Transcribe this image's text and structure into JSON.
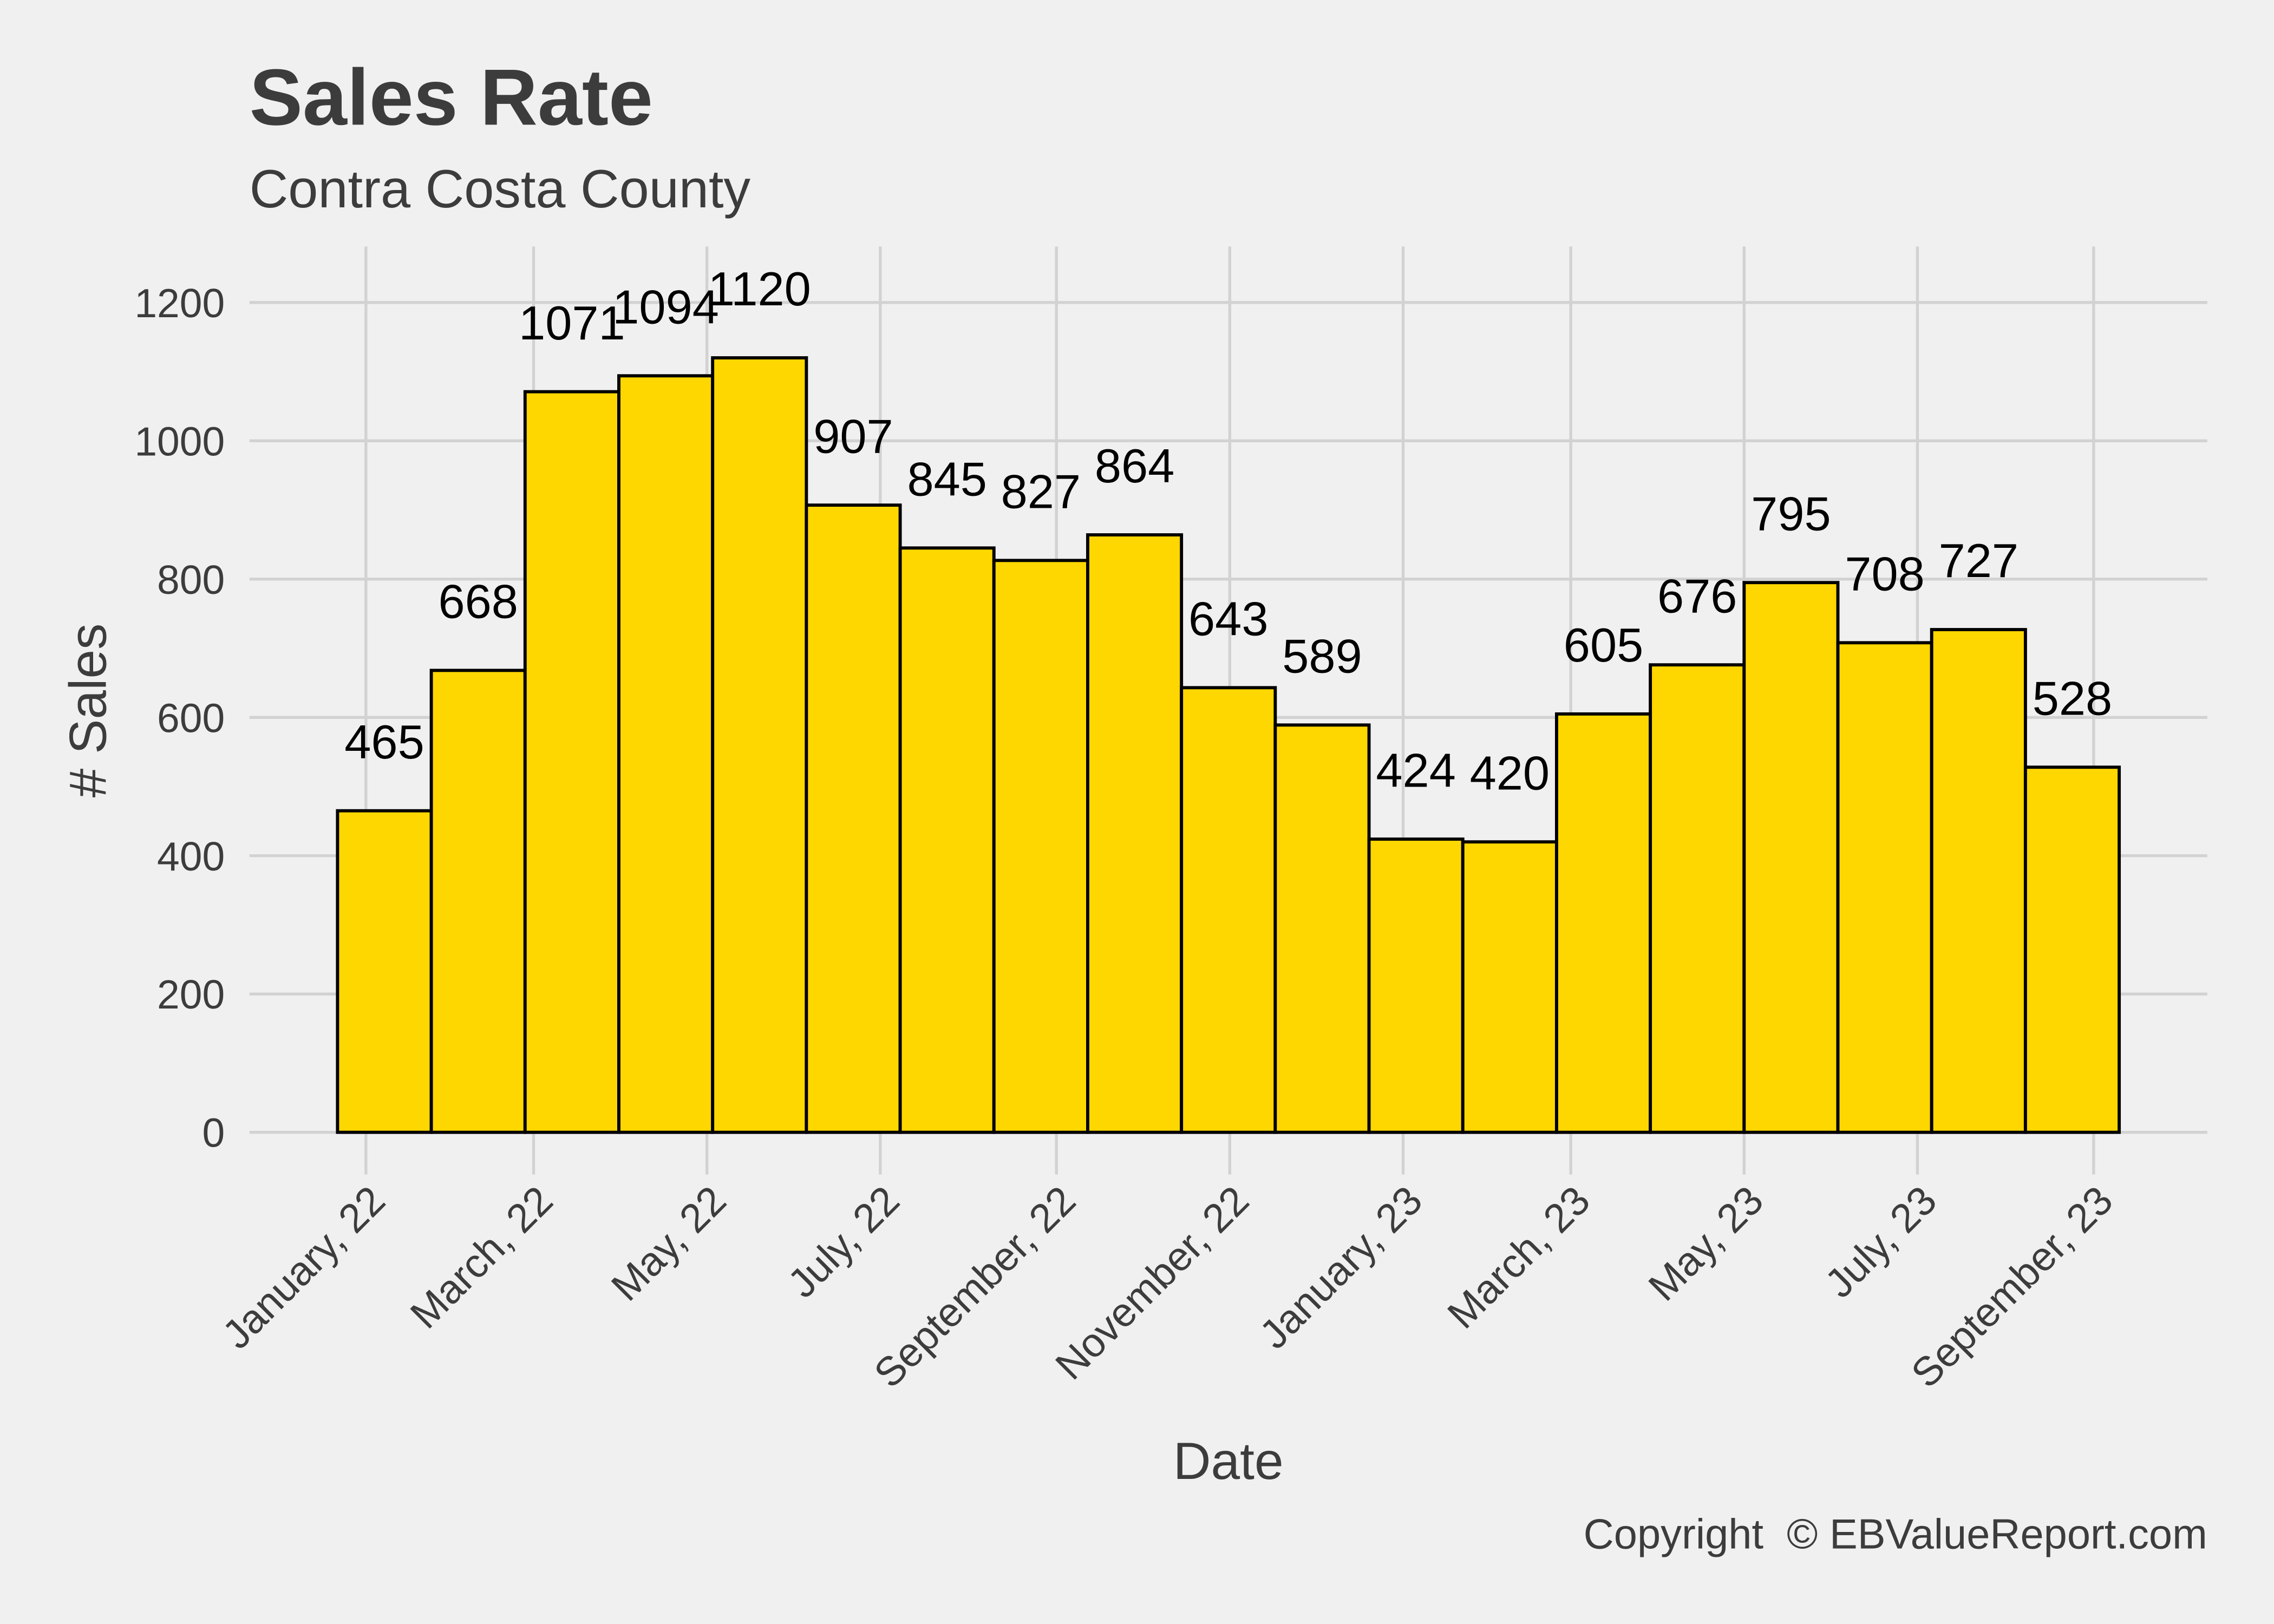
{
  "chart_data": {
    "type": "bar",
    "title": "Sales Rate",
    "subtitle": "Contra Costa County",
    "xlabel": "Date",
    "ylabel": "# Sales",
    "caption": "Copyright  © EBValueReport.com",
    "bin_edges": [
      "2021-12-22",
      "2022-01-24",
      "2022-02-26",
      "2022-03-31",
      "2022-05-03",
      "2022-06-05",
      "2022-07-08",
      "2022-08-10",
      "2022-09-12",
      "2022-10-15",
      "2022-11-17",
      "2022-12-20",
      "2023-01-22",
      "2023-02-24",
      "2023-03-29",
      "2023-05-01",
      "2023-06-03",
      "2023-07-06",
      "2023-08-08",
      "2023-09-10"
    ],
    "values": [
      465,
      668,
      1071,
      1094,
      1120,
      907,
      845,
      827,
      864,
      643,
      589,
      424,
      420,
      605,
      676,
      795,
      708,
      727,
      528
    ],
    "x_ticks": [
      {
        "date": "2022-01-01",
        "label": "January, 22"
      },
      {
        "date": "2022-03-01",
        "label": "March, 22"
      },
      {
        "date": "2022-05-01",
        "label": "May, 22"
      },
      {
        "date": "2022-07-01",
        "label": "July, 22"
      },
      {
        "date": "2022-09-01",
        "label": "September, 22"
      },
      {
        "date": "2022-11-01",
        "label": "November, 22"
      },
      {
        "date": "2023-01-01",
        "label": "January, 23"
      },
      {
        "date": "2023-03-01",
        "label": "March, 23"
      },
      {
        "date": "2023-05-01",
        "label": "May, 23"
      },
      {
        "date": "2023-07-01",
        "label": "July, 23"
      },
      {
        "date": "2023-09-01",
        "label": "September, 23"
      }
    ],
    "y_ticks": [
      0,
      200,
      400,
      600,
      800,
      1000,
      1200
    ],
    "xlim": [
      "2021-11-21",
      "2023-10-11"
    ],
    "ylim": [
      -61,
      1281
    ],
    "grid": true,
    "colors": {
      "background": "#F0F0F0",
      "grid": "#D2D2D2",
      "bar_fill": "#FFD700",
      "bar_outline": "#000000",
      "text": "#3C3C3C",
      "value_label": "#000000"
    }
  }
}
